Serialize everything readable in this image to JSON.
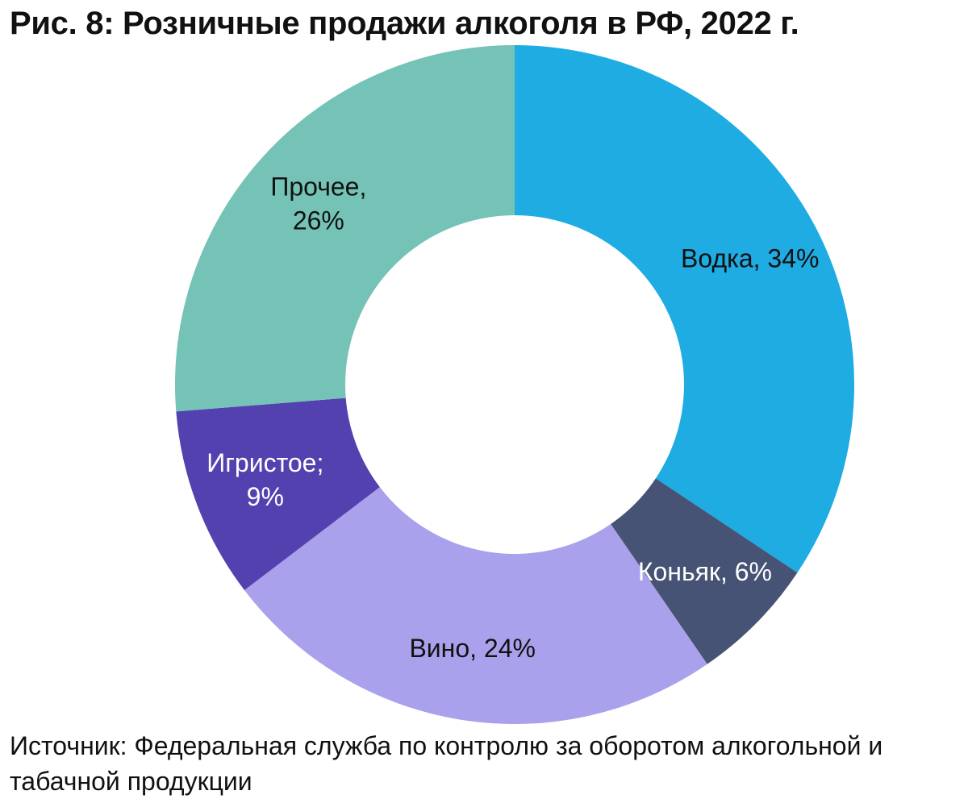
{
  "title": "Рис. 8: Розничные продажи алкоголя в РФ, 2022 г.",
  "source": "Источник: Федеральная служба по контролю за оборотом алкогольной и табачной продукции",
  "chart_data": {
    "type": "pie",
    "style": "donut",
    "title": "Рис. 8: Розничные продажи алкоголя в РФ, 2022 г.",
    "unit": "%",
    "start": "12 o'clock, clockwise",
    "slices": [
      {
        "category": "Водка",
        "value": 34,
        "color": "#1eace3",
        "label_lines": [
          "Водка, 34%"
        ],
        "label_color": "#111111"
      },
      {
        "category": "Коньяк",
        "value": 6,
        "color": "#465374",
        "label_lines": [
          "Коньяк, 6%"
        ],
        "label_color": "#ffffff"
      },
      {
        "category": "Вино",
        "value": 24,
        "color": "#a9a1ec",
        "label_lines": [
          "Вино, 24%"
        ],
        "label_color": "#111111"
      },
      {
        "category": "Игристое",
        "value": 9,
        "color": "#5441b0",
        "label_lines": [
          "Игристое;",
          "9%"
        ],
        "label_color": "#ffffff"
      },
      {
        "category": "Прочее",
        "value": 26,
        "color": "#75c2b6",
        "label_lines": [
          "Прочее,",
          "26%"
        ],
        "label_color": "#111111"
      }
    ],
    "legend": "none",
    "grid": false
  }
}
